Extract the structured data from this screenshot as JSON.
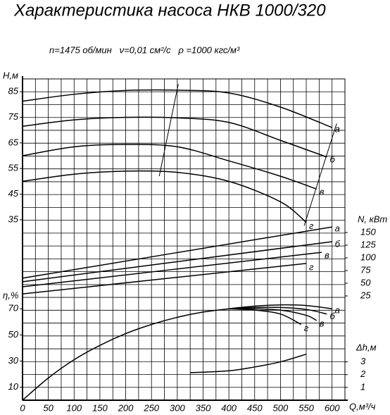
{
  "chart_data": {
    "type": "line",
    "title": "Характеристика насоса НКВ 1000/320",
    "subtitle": "n=1475 об/мин   ν=0,01 см²/с   ρ =1000 кгс/м³",
    "xlabel": "Q,м³/ч",
    "xlim": [
      0,
      625
    ],
    "xticks": [
      0,
      50,
      100,
      150,
      200,
      250,
      300,
      350,
      400,
      450,
      500,
      550,
      600
    ],
    "xgrid": [
      0,
      25,
      50,
      75,
      100,
      125,
      150,
      175,
      200,
      225,
      250,
      275,
      300,
      325,
      350,
      375,
      400,
      425,
      450,
      475,
      500,
      525,
      550,
      575,
      600,
      625
    ],
    "color": "#000000",
    "axes": [
      {
        "label": "H,м",
        "side": "left",
        "ylim": [
          32.5,
          90
        ],
        "yticks": [
          85,
          75,
          65,
          55,
          45,
          35
        ],
        "series": [
          {
            "name": "а",
            "x": [
              0,
              100,
              200,
              300,
              400,
              500,
              600
            ],
            "values": [
              81.3,
              84,
              85.5,
              85.6,
              84.5,
              79,
              71
            ]
          },
          {
            "name": "б",
            "x": [
              0,
              100,
              200,
              300,
              400,
              500,
              590
            ],
            "values": [
              71.5,
              74,
              75,
              74.8,
              73,
              66,
              59.5
            ]
          },
          {
            "name": "в",
            "x": [
              0,
              100,
              200,
              300,
              400,
              500,
              570
            ],
            "values": [
              60,
              63.5,
              64.4,
              63.5,
              58,
              52,
              47
            ]
          },
          {
            "name": "г",
            "x": [
              0,
              100,
              200,
              300,
              400,
              500,
              550
            ],
            "values": [
              50,
              52.8,
              54,
              53.5,
              50,
              42,
              34
            ]
          }
        ],
        "lines": [
          {
            "x": [
              265,
              302
            ],
            "values": [
              52,
              88
            ]
          },
          {
            "x": [
              609,
              546
            ],
            "values": [
              72.6,
              32.7
            ]
          }
        ]
      },
      {
        "label": "N, кВт",
        "side": "right",
        "ylim": [
          0,
          175
        ],
        "yticks": [
          150,
          125,
          100,
          75,
          50,
          25
        ],
        "series": [
          {
            "name": "а",
            "x": [
              0,
              600
            ],
            "values": [
              60,
              161
            ]
          },
          {
            "name": "б",
            "x": [
              0,
              600
            ],
            "values": [
              53,
              132
            ]
          },
          {
            "name": "в",
            "x": [
              0,
              580
            ],
            "values": [
              43,
              111
            ]
          },
          {
            "name": "г",
            "x": [
              0,
              550
            ],
            "values": [
              29,
              89
            ]
          }
        ]
      },
      {
        "label": "η,%",
        "side": "left",
        "ylim": [
          0,
          75
        ],
        "yticks": [
          70,
          50,
          30,
          10
        ],
        "series": [
          {
            "name": "а",
            "x": [
              0,
              50,
              100,
              150,
              200,
              250,
              300,
              350,
              400,
              450,
              500,
              550,
              600
            ],
            "values": [
              0,
              17,
              31,
              42,
              51,
              58,
              63.5,
              67.5,
              70,
              72,
              73,
              72.5,
              70
            ]
          },
          {
            "name": "б",
            "x": [
              400,
              450,
              500,
              550,
              590
            ],
            "values": [
              70,
              71,
              71,
              69.5,
              66
            ]
          },
          {
            "name": "в",
            "x": [
              400,
              450,
              500,
              550,
              570
            ],
            "values": [
              70,
              70,
              69,
              65,
              61
            ]
          },
          {
            "name": "г",
            "x": [
              400,
              450,
              500,
              540
            ],
            "values": [
              70,
              69,
              66,
              58
            ]
          }
        ]
      },
      {
        "label": "Δh,м",
        "side": "right",
        "ylim": [
          0,
          4
        ],
        "yticks": [
          3,
          2,
          1
        ],
        "series": [
          {
            "name": "",
            "x": [
              325,
              400,
              450,
              500,
              550
            ],
            "values": [
              2.15,
              2.3,
              2.6,
              3.0,
              3.6
            ]
          }
        ]
      }
    ]
  }
}
